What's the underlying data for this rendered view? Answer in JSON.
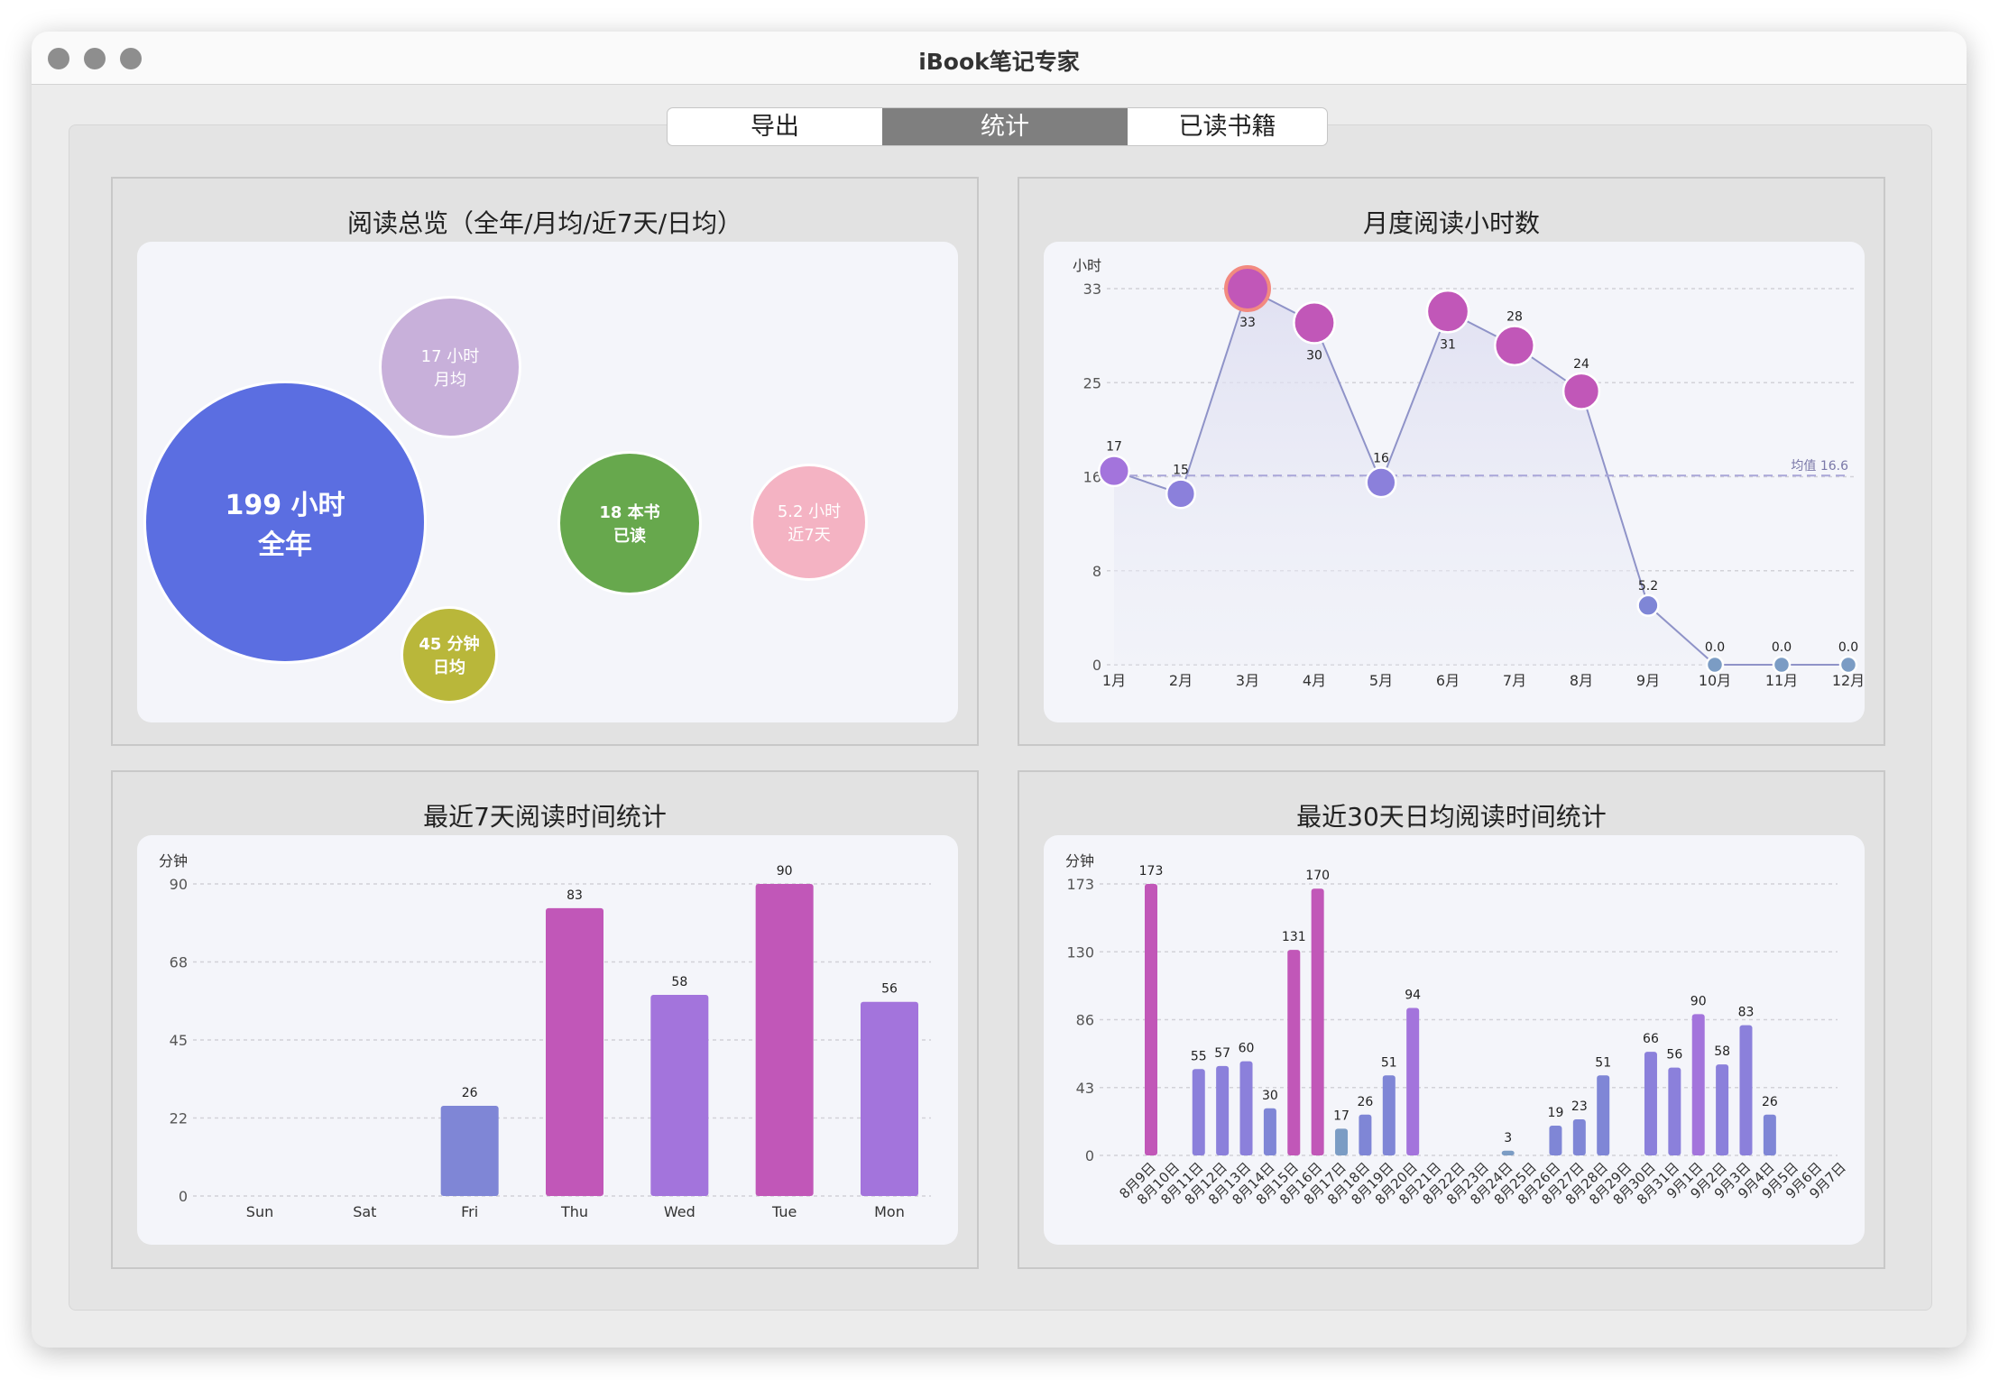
{
  "window": {
    "title": "iBook笔记专家"
  },
  "tabs": [
    {
      "label": "导出",
      "selected": false
    },
    {
      "label": "统计",
      "selected": true
    },
    {
      "label": "已读书籍",
      "selected": false
    }
  ],
  "overview": {
    "title": "阅读总览（全年/月均/近7天/日均）",
    "bubbles": [
      {
        "value": "199 小时",
        "label": "全年",
        "color": "#5b6ee1"
      },
      {
        "value": "17 小时",
        "label": "月均",
        "color": "#c8b0da"
      },
      {
        "value": "18 本书",
        "label": "已读",
        "color": "#67a84d"
      },
      {
        "value": "5.2 小时",
        "label": "近7天",
        "color": "#f4b3c3"
      },
      {
        "value": "45 分钟",
        "label": "日均",
        "color": "#b9b73a"
      }
    ]
  },
  "chart_data": [
    {
      "type": "line",
      "title": "月度阅读小时数",
      "ylabel": "小时",
      "categories": [
        "1月",
        "2月",
        "3月",
        "4月",
        "5月",
        "6月",
        "7月",
        "8月",
        "9月",
        "10月",
        "11月",
        "12月"
      ],
      "values": [
        17,
        15,
        33,
        30,
        16,
        31,
        28,
        24,
        5.2,
        0.0,
        0.0,
        0.0
      ],
      "value_labels": [
        "17",
        "15",
        "33",
        "30",
        "16",
        "31",
        "28",
        "24",
        "5.2",
        "0.0",
        "0.0",
        "0.0"
      ],
      "yticks": [
        "0",
        "8",
        "16",
        "25",
        "33"
      ],
      "ylim": [
        0,
        33
      ],
      "average": {
        "label": "均值 16.6",
        "value": 16.6
      },
      "grid": true
    },
    {
      "type": "bar",
      "title": "最近7天阅读时间统计",
      "ylabel": "分钟",
      "categories": [
        "Sun",
        "Sat",
        "Fri",
        "Thu",
        "Wed",
        "Tue",
        "Mon"
      ],
      "values": [
        0,
        0,
        26,
        83,
        58,
        90,
        56
      ],
      "yticks": [
        "0",
        "22",
        "45",
        "68",
        "90"
      ],
      "ylim": [
        0,
        90
      ],
      "grid": true
    },
    {
      "type": "bar",
      "title": "最近30天日均阅读时间统计",
      "ylabel": "分钟",
      "categories": [
        "8月9日",
        "8月10日",
        "8月11日",
        "8月12日",
        "8月13日",
        "8月14日",
        "8月15日",
        "8月16日",
        "8月17日",
        "8月18日",
        "8月19日",
        "8月20日",
        "8月21日",
        "8月22日",
        "8月23日",
        "8月24日",
        "8月25日",
        "8月26日",
        "8月27日",
        "8月28日",
        "8月29日",
        "8月30日",
        "8月31日",
        "9月1日",
        "9月2日",
        "9月3日",
        "9月4日",
        "9月5日",
        "9月6日",
        "9月7日"
      ],
      "values": [
        173,
        0,
        55,
        57,
        60,
        30,
        131,
        170,
        17,
        26,
        51,
        94,
        0,
        0,
        0,
        3,
        0,
        19,
        23,
        51,
        0,
        66,
        56,
        90,
        58,
        83,
        26,
        0,
        0,
        0
      ],
      "yticks": [
        "0",
        "43",
        "86",
        "130",
        "173"
      ],
      "ylim": [
        0,
        173
      ],
      "grid": true
    }
  ]
}
